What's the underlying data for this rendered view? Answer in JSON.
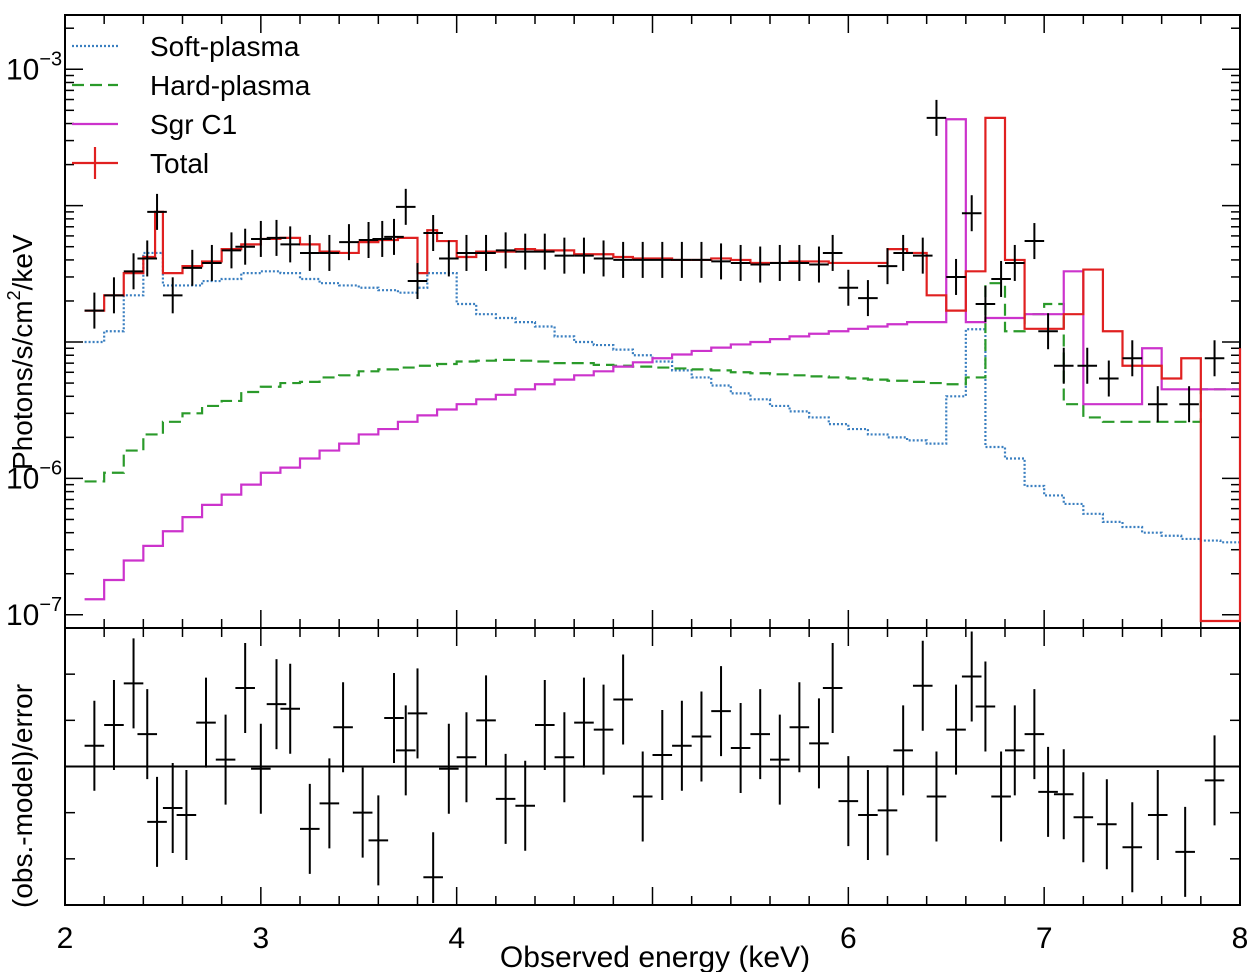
{
  "chart_data": {
    "type": "line",
    "title": "",
    "top_panel": {
      "ylabel_main": "Photons/s/cm",
      "ylabel_sup": "2",
      "ylabel_tail": "/keV",
      "yscale": "log",
      "ylim": [
        8e-08,
        0.0025
      ],
      "y_tick_labels": [
        {
          "value": 0.001,
          "base": "10",
          "exp": "−3"
        },
        {
          "value": 1e-06,
          "base": "10",
          "exp": "−6"
        },
        {
          "value": 1e-07,
          "base": "10",
          "exp": "−7"
        }
      ],
      "legend": {
        "placement": "top-left",
        "entries": [
          "Soft-plasma",
          "Hard-plasma",
          "Sgr C1",
          "Total"
        ]
      },
      "series": [
        {
          "name": "Soft-plasma",
          "style": "dotted",
          "color": "#3a7fc0",
          "x": [
            2.1,
            2.2,
            2.3,
            2.4,
            2.46,
            2.5,
            2.6,
            2.7,
            2.8,
            2.9,
            3.0,
            3.1,
            3.2,
            3.3,
            3.4,
            3.5,
            3.6,
            3.7,
            3.75,
            3.8,
            3.85,
            3.9,
            4.0,
            4.1,
            4.2,
            4.3,
            4.4,
            4.5,
            4.6,
            4.7,
            4.8,
            4.9,
            5.0,
            5.1,
            5.2,
            5.3,
            5.4,
            5.5,
            5.6,
            5.7,
            5.8,
            5.9,
            6.0,
            6.1,
            6.2,
            6.3,
            6.4,
            6.5,
            6.6,
            6.7,
            6.8,
            6.9,
            7.0,
            7.1,
            7.2,
            7.3,
            7.4,
            7.5,
            7.6,
            7.7,
            7.8,
            7.9,
            8.0
          ],
          "y": [
            1e-05,
            1.2e-05,
            2.2e-05,
            4.5e-05,
            4.5e-05,
            2.6e-05,
            2.6e-05,
            2.8e-05,
            2.9e-05,
            3.2e-05,
            3.3e-05,
            3.2e-05,
            2.9e-05,
            2.7e-05,
            2.6e-05,
            2.5e-05,
            2.4e-05,
            2.3e-05,
            2.3e-05,
            2.5e-05,
            3.2e-05,
            3.2e-05,
            1.9e-05,
            1.6e-05,
            1.5e-05,
            1.4e-05,
            1.3e-05,
            1.1e-05,
            1e-05,
            9.5e-06,
            8.8e-06,
            8e-06,
            7.2e-06,
            6.2e-06,
            5.5e-06,
            4.8e-06,
            4.2e-06,
            3.8e-06,
            3.4e-06,
            3.1e-06,
            2.8e-06,
            2.5e-06,
            2.3e-06,
            2.1e-06,
            2e-06,
            1.9e-06,
            1.8e-06,
            4e-06,
            1.24e-05,
            1.7e-06,
            1.4e-06,
            8.8e-07,
            7.5e-07,
            6.5e-07,
            5.5e-07,
            4.8e-07,
            4.4e-07,
            4e-07,
            3.8e-07,
            3.6e-07,
            3.5e-07,
            3.4e-07,
            3.4e-07
          ]
        },
        {
          "name": "Hard-plasma",
          "style": "dashed",
          "color": "#2a9a2a",
          "x": [
            2.1,
            2.2,
            2.3,
            2.4,
            2.5,
            2.6,
            2.7,
            2.8,
            2.9,
            3.0,
            3.1,
            3.2,
            3.3,
            3.4,
            3.5,
            3.6,
            3.7,
            3.8,
            3.9,
            4.0,
            4.1,
            4.2,
            4.3,
            4.4,
            4.5,
            4.6,
            4.7,
            4.8,
            4.9,
            5.0,
            5.1,
            5.2,
            5.3,
            5.4,
            5.5,
            5.6,
            5.7,
            5.8,
            5.9,
            6.0,
            6.1,
            6.2,
            6.3,
            6.4,
            6.5,
            6.6,
            6.7,
            6.8,
            6.9,
            7.0,
            7.1,
            7.2,
            7.3,
            7.4,
            7.5,
            7.6,
            7.7,
            7.8,
            7.9,
            8.0
          ],
          "y": [
            9.5e-07,
            1.1e-06,
            1.6e-06,
            2.1e-06,
            2.6e-06,
            3e-06,
            3.4e-06,
            3.7e-06,
            4.3e-06,
            4.7e-06,
            5e-06,
            5.1e-06,
            5.5e-06,
            5.7e-06,
            6.1e-06,
            6.3e-06,
            6.5e-06,
            6.7e-06,
            6.9e-06,
            7.2e-06,
            7.3e-06,
            7.4e-06,
            7.3e-06,
            7.2e-06,
            7e-06,
            7e-06,
            6.8e-06,
            6.7e-06,
            6.6e-06,
            6.5e-06,
            6.4e-06,
            6.3e-06,
            6.2e-06,
            6e-06,
            5.9e-06,
            5.8e-06,
            5.7e-06,
            5.6e-06,
            5.5e-06,
            5.4e-06,
            5.3e-06,
            5.2e-06,
            5.1e-06,
            5e-06,
            4.9e-06,
            5.5e-06,
            2.7e-05,
            1.2e-05,
            1.6e-05,
            1.9e-05,
            3.5e-06,
            2.8e-06,
            2.6e-06,
            2.6e-06,
            2.6e-06,
            2.6e-06,
            2.6e-06,
            4.5e-06,
            4.5e-06,
            4.5e-06
          ]
        },
        {
          "name": "Sgr C1",
          "style": "solid",
          "color": "#cc33cc",
          "x": [
            2.1,
            2.2,
            2.3,
            2.4,
            2.5,
            2.6,
            2.7,
            2.8,
            2.9,
            3.0,
            3.1,
            3.2,
            3.3,
            3.4,
            3.5,
            3.6,
            3.7,
            3.8,
            3.9,
            4.0,
            4.1,
            4.2,
            4.3,
            4.4,
            4.5,
            4.6,
            4.7,
            4.8,
            4.9,
            5.0,
            5.1,
            5.2,
            5.3,
            5.4,
            5.5,
            5.6,
            5.7,
            5.8,
            5.9,
            6.0,
            6.1,
            6.2,
            6.3,
            6.4,
            6.5,
            6.6,
            6.7,
            6.8,
            6.9,
            7.0,
            7.1,
            7.2,
            7.3,
            7.4,
            7.5,
            7.6,
            7.7,
            7.8,
            7.9,
            8.0
          ],
          "y": [
            1.3e-07,
            1.8e-07,
            2.5e-07,
            3.2e-07,
            4.1e-07,
            5.2e-07,
            6.4e-07,
            7.6e-07,
            9e-07,
            1.1e-06,
            1.2e-06,
            1.4e-06,
            1.6e-06,
            1.8e-06,
            2.1e-06,
            2.3e-06,
            2.6e-06,
            2.9e-06,
            3.2e-06,
            3.5e-06,
            3.8e-06,
            4.1e-06,
            4.5e-06,
            4.9e-06,
            5.3e-06,
            5.7e-06,
            6.1e-06,
            6.6e-06,
            7.1e-06,
            7.6e-06,
            8.1e-06,
            8.6e-06,
            9.1e-06,
            9.6e-06,
            1e-05,
            1.05e-05,
            1.1e-05,
            1.15e-05,
            1.2e-05,
            1.25e-05,
            1.3e-05,
            1.35e-05,
            1.4e-05,
            1.4e-05,
            0.00043,
            1.4e-05,
            1.5e-05,
            1.5e-05,
            1.6e-05,
            1.6e-05,
            3.3e-05,
            3.5e-06,
            3.5e-06,
            3.5e-06,
            9e-06,
            4.5e-06,
            4.5e-06,
            4.5e-06,
            4.5e-06,
            4.5e-06
          ]
        },
        {
          "name": "Total",
          "style": "solid-step",
          "color": "#e02020",
          "x": [
            2.1,
            2.2,
            2.3,
            2.4,
            2.46,
            2.5,
            2.6,
            2.7,
            2.8,
            2.9,
            3.0,
            3.1,
            3.2,
            3.3,
            3.4,
            3.5,
            3.6,
            3.7,
            3.75,
            3.8,
            3.85,
            3.9,
            4.0,
            4.1,
            4.2,
            4.3,
            4.4,
            4.5,
            4.6,
            4.7,
            4.8,
            4.9,
            5.0,
            5.1,
            5.2,
            5.3,
            5.4,
            5.5,
            5.6,
            5.7,
            5.8,
            5.9,
            6.0,
            6.1,
            6.2,
            6.3,
            6.4,
            6.5,
            6.6,
            6.7,
            6.8,
            6.9,
            7.0,
            7.1,
            7.2,
            7.3,
            7.4,
            7.5,
            7.6,
            7.7,
            7.8,
            7.9,
            8.0
          ],
          "y": [
            1.7e-05,
            2.2e-05,
            3.2e-05,
            4.2e-05,
            9e-05,
            3.2e-05,
            3.6e-05,
            3.9e-05,
            4.8e-05,
            5.2e-05,
            5.7e-05,
            5.8e-05,
            5.2e-05,
            4.6e-05,
            4.5e-05,
            5.4e-05,
            5.6e-05,
            5.8e-05,
            5.8e-05,
            3.2e-05,
            6.6e-05,
            5.5e-05,
            4.2e-05,
            4.6e-05,
            4.6e-05,
            4.8e-05,
            4.7e-05,
            4.7e-05,
            4.4e-05,
            4.4e-05,
            4.2e-05,
            4.1e-05,
            4.1e-05,
            4e-05,
            4e-05,
            4.1e-05,
            4e-05,
            3.8e-05,
            3.8e-05,
            3.9e-05,
            3.9e-05,
            3.8e-05,
            3.8e-05,
            3.8e-05,
            4.8e-05,
            4.5e-05,
            2.2e-05,
            1.7e-05,
            3.3e-05,
            0.00044,
            4e-05,
            1.25e-05,
            1.25e-05,
            1.6e-05,
            3.4e-05,
            1.2e-05,
            6.7e-06,
            6.7e-06,
            5.4e-06,
            7.6e-06,
            9e-08,
            9e-08,
            9e-06
          ]
        }
      ],
      "data_points": {
        "x": [
          2.15,
          2.25,
          2.35,
          2.42,
          2.47,
          2.55,
          2.65,
          2.75,
          2.85,
          2.92,
          3.0,
          3.08,
          3.15,
          3.25,
          3.35,
          3.45,
          3.55,
          3.62,
          3.68,
          3.74,
          3.8,
          3.88,
          3.96,
          4.05,
          4.15,
          4.25,
          4.35,
          4.45,
          4.55,
          4.65,
          4.75,
          4.85,
          4.95,
          5.05,
          5.15,
          5.25,
          5.35,
          5.45,
          5.55,
          5.65,
          5.75,
          5.85,
          5.92,
          6.0,
          6.1,
          6.2,
          6.28,
          6.38,
          6.45,
          6.55,
          6.63,
          6.7,
          6.78,
          6.85,
          6.95,
          7.02,
          7.1,
          7.22,
          7.33,
          7.45,
          7.58,
          7.74,
          7.87
        ],
        "y": [
          1.7e-05,
          2.2e-05,
          3.3e-05,
          4.1e-05,
          9e-05,
          2.2e-05,
          3.5e-05,
          3.8e-05,
          4.7e-05,
          5e-05,
          5.7e-05,
          5.8e-05,
          5.2e-05,
          4.5e-05,
          4.5e-05,
          5.4e-05,
          5.6e-05,
          5.7e-05,
          5.9e-05,
          9.8e-05,
          2.8e-05,
          6.3e-05,
          4.1e-05,
          4.5e-05,
          4.5e-05,
          4.7e-05,
          4.6e-05,
          4.6e-05,
          4.3e-05,
          4.3e-05,
          4.1e-05,
          4e-05,
          4e-05,
          4e-05,
          4e-05,
          4e-05,
          3.9e-05,
          3.8e-05,
          3.7e-05,
          3.8e-05,
          3.8e-05,
          3.7e-05,
          4.5e-05,
          2.5e-05,
          2.1e-05,
          3.6e-05,
          4.5e-05,
          4.3e-05,
          0.00044,
          3e-05,
          8.8e-05,
          1.9e-05,
          2.9e-05,
          3.8e-05,
          5.5e-05,
          1.2e-05,
          6.7e-06,
          6.7e-06,
          5.4e-06,
          7.6e-06,
          3.5e-06,
          3.5e-06,
          7.6e-06
        ]
      }
    },
    "bottom_panel": {
      "ylabel": "(obs.-model)/error",
      "ylim": [
        -3.0,
        3.0
      ],
      "residuals": {
        "x": [
          2.15,
          2.25,
          2.35,
          2.42,
          2.47,
          2.55,
          2.62,
          2.72,
          2.82,
          2.92,
          3.0,
          3.08,
          3.15,
          3.25,
          3.35,
          3.42,
          3.52,
          3.6,
          3.68,
          3.74,
          3.8,
          3.88,
          3.96,
          4.05,
          4.15,
          4.25,
          4.35,
          4.45,
          4.55,
          4.65,
          4.75,
          4.85,
          4.95,
          5.05,
          5.15,
          5.25,
          5.35,
          5.45,
          5.55,
          5.65,
          5.75,
          5.85,
          5.92,
          6.0,
          6.1,
          6.2,
          6.28,
          6.38,
          6.45,
          6.55,
          6.63,
          6.7,
          6.78,
          6.85,
          6.95,
          7.02,
          7.1,
          7.2,
          7.32,
          7.45,
          7.58,
          7.72,
          7.87
        ],
        "y": [
          0.45,
          0.9,
          1.8,
          0.7,
          -1.2,
          -0.9,
          -1.05,
          0.95,
          0.15,
          1.7,
          -0.05,
          1.35,
          1.25,
          -1.35,
          -0.8,
          0.85,
          -1.0,
          -1.6,
          1.05,
          0.35,
          1.15,
          -2.4,
          -0.05,
          0.2,
          1.0,
          -0.7,
          -0.85,
          0.9,
          0.2,
          0.95,
          0.8,
          1.45,
          -0.65,
          0.25,
          0.45,
          0.65,
          1.2,
          0.4,
          0.7,
          0.15,
          0.85,
          0.5,
          1.7,
          -0.75,
          -1.05,
          -0.95,
          0.35,
          1.75,
          -0.65,
          0.8,
          1.95,
          1.3,
          -0.65,
          0.35,
          0.7,
          -0.55,
          -0.6,
          -1.1,
          -1.25,
          -1.75,
          -1.05,
          -1.85,
          -0.3
        ]
      }
    },
    "xlabel": "Observed energy (keV)",
    "xlim": [
      2,
      8
    ],
    "x_tick_labels": [
      "2",
      "3",
      "4",
      "6",
      "7",
      "8"
    ],
    "x_tick_values": [
      2,
      3,
      4,
      6,
      7,
      8
    ],
    "grid": false
  }
}
